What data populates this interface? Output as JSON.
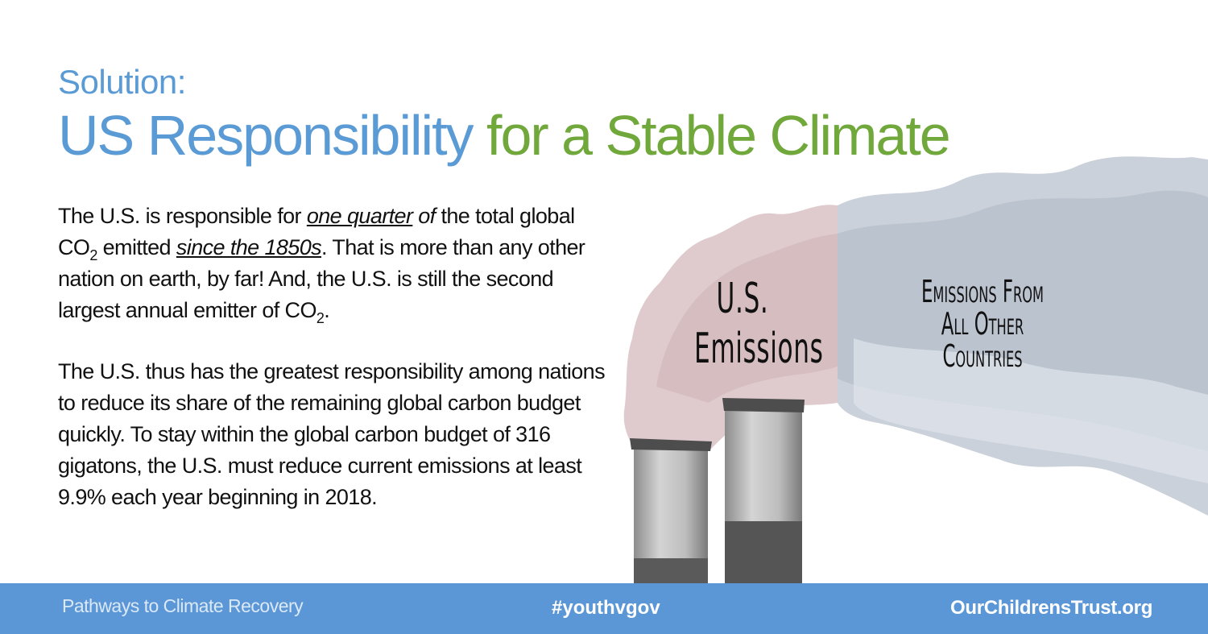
{
  "title": {
    "subtitle": "Solution:",
    "headline_part1": "US Responsibility",
    "headline_part2": " for a Stable Climate"
  },
  "paragraph1": {
    "t1": "The U.S. is responsible for ",
    "e1": "one quarter",
    "t2": " ",
    "i1": "of",
    "t3": " the total global CO",
    "s1": "2",
    "t4": " emitted ",
    "e2": "since the 1850s",
    "t5": ". That is more than any other nation on earth, by far!   And, the U.S. is still the second largest annual emitter of CO",
    "s2": "2",
    "t6": "."
  },
  "paragraph2": "The U.S. thus has the greatest responsibility among nations to reduce its share of the remaining global carbon budget quickly. To stay within the global carbon budget of 316 gigatons, the U.S. must reduce current emissions at least 9.9% each year beginning in 2018.",
  "illustration": {
    "us_label_line1": "U.S.",
    "us_label_line2": "Emissions",
    "other_label_line1": "Emissions From",
    "other_label_line2": "All Other Countries",
    "us_smoke_color": "#d9c2c4",
    "other_smoke_color": "#c3cbd6"
  },
  "footer": {
    "left": "Pathways to Climate Recovery",
    "middle": "#youthvgov",
    "right": "OurChildrensTrust.org",
    "background": "#5b97d6"
  },
  "colors": {
    "title_blue": "#5b9bd5",
    "title_green": "#70a83b"
  }
}
